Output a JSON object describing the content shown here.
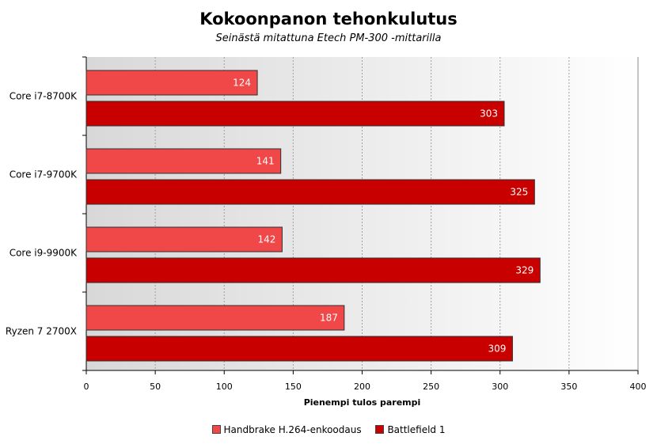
{
  "chart_data": {
    "type": "bar",
    "orientation": "horizontal",
    "title": "Kokoonpanon tehonkulutus",
    "subtitle": "Seinästä mitattuna Etech PM-300 -mittarilla",
    "xlabel": "Pienempi tulos parempi",
    "ylabel": "",
    "categories": [
      "Core i7-8700K",
      "Core i7-9700K",
      "Core i9-9900K",
      "Ryzen 7 2700X"
    ],
    "series": [
      {
        "name": "Handbrake H.264-enkoodaus",
        "color": "#f04848",
        "values": [
          124,
          141,
          142,
          187
        ]
      },
      {
        "name": "Battlefield 1",
        "color": "#c80000",
        "values": [
          303,
          325,
          329,
          309
        ]
      }
    ],
    "xlim": [
      0,
      400
    ],
    "xticks": [
      0,
      50,
      100,
      150,
      200,
      250,
      300,
      350,
      400
    ],
    "grid": true,
    "legend_position": "bottom",
    "data_labels": "inside-end"
  }
}
